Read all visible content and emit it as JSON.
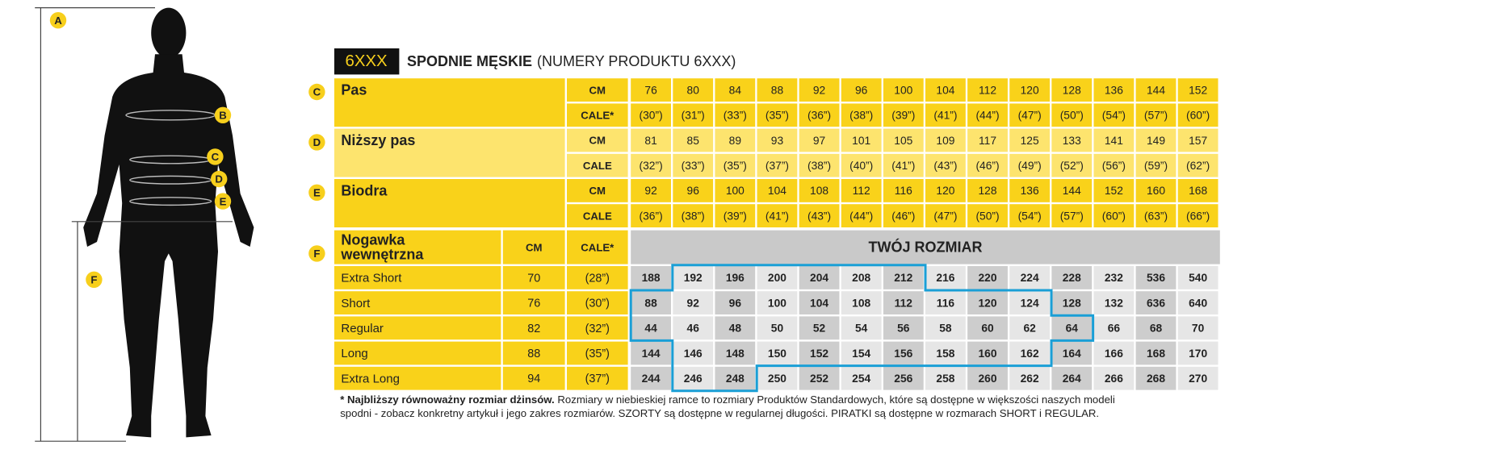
{
  "figure_letters": [
    "A",
    "B",
    "C",
    "D",
    "E",
    "F"
  ],
  "header": {
    "badge": "6XXX",
    "title": "SPODNIE MĘSKIE",
    "subtitle": "(NUMERY PRODUKTU 6XXX)"
  },
  "measurements": [
    {
      "letter": "C",
      "label": "Pas",
      "rows": [
        {
          "unit": "CM",
          "values": [
            76,
            80,
            84,
            88,
            92,
            96,
            100,
            104,
            112,
            120,
            128,
            136,
            144,
            152
          ]
        },
        {
          "unit": "CALE*",
          "values": [
            "(30”)",
            "(31”)",
            "(33”)",
            "(35”)",
            "(36”)",
            "(38”)",
            "(39”)",
            "(41”)",
            "(44”)",
            "(47”)",
            "(50”)",
            "(54”)",
            "(57”)",
            "(60”)"
          ]
        }
      ]
    },
    {
      "letter": "D",
      "label": "Niższy pas",
      "rows": [
        {
          "unit": "CM",
          "values": [
            81,
            85,
            89,
            93,
            97,
            101,
            105,
            109,
            117,
            125,
            133,
            141,
            149,
            157
          ]
        },
        {
          "unit": "CALE",
          "values": [
            "(32”)",
            "(33”)",
            "(35”)",
            "(37”)",
            "(38”)",
            "(40”)",
            "(41”)",
            "(43”)",
            "(46”)",
            "(49”)",
            "(52”)",
            "(56”)",
            "(59”)",
            "(62”)"
          ]
        }
      ]
    },
    {
      "letter": "E",
      "label": "Biodra",
      "rows": [
        {
          "unit": "CM",
          "values": [
            92,
            96,
            100,
            104,
            108,
            112,
            116,
            120,
            128,
            136,
            144,
            152,
            160,
            168
          ]
        },
        {
          "unit": "CALE",
          "values": [
            "(36”)",
            "(38”)",
            "(39”)",
            "(41”)",
            "(43”)",
            "(44”)",
            "(46”)",
            "(47”)",
            "(50”)",
            "(54”)",
            "(57”)",
            "(60”)",
            "(63”)",
            "(66”)"
          ]
        }
      ]
    }
  ],
  "inseam": {
    "letter": "F",
    "label": [
      "Nogawka",
      "wewnętrzna"
    ],
    "cm_header": "CM",
    "cale_header": "CALE*",
    "size_header": "TWÓJ ROZMIAR",
    "rows": [
      {
        "name": "Extra Short",
        "cm": 70,
        "cale": "(28”)",
        "sizes": [
          188,
          192,
          196,
          200,
          204,
          208,
          212,
          216,
          220,
          224,
          228,
          232,
          536,
          540
        ]
      },
      {
        "name": "Short",
        "cm": 76,
        "cale": "(30”)",
        "sizes": [
          88,
          92,
          96,
          100,
          104,
          108,
          112,
          116,
          120,
          124,
          128,
          132,
          636,
          640
        ]
      },
      {
        "name": "Regular",
        "cm": 82,
        "cale": "(32”)",
        "sizes": [
          44,
          46,
          48,
          50,
          52,
          54,
          56,
          58,
          60,
          62,
          64,
          66,
          68,
          70
        ]
      },
      {
        "name": "Long",
        "cm": 88,
        "cale": "(35”)",
        "sizes": [
          144,
          146,
          148,
          150,
          152,
          154,
          156,
          158,
          160,
          162,
          164,
          166,
          168,
          170
        ]
      },
      {
        "name": "Extra Long",
        "cm": 94,
        "cale": "(37”)",
        "sizes": [
          244,
          246,
          248,
          250,
          252,
          254,
          256,
          258,
          260,
          262,
          264,
          266,
          268,
          270
        ]
      }
    ]
  },
  "footnote": {
    "bold": "* Najbliższy równoważny rozmiar dżinsów.",
    "line1": " Rozmiary w niebieskiej ramce to rozmiary Produktów Standardowych, które są dostępne w większości naszych modeli",
    "line2": "spodni - zobacz konkretny artykuł i jego zakres rozmiarów. SZORTY są dostępne w regularnej długości. PIRATKI są dostępne w rozmarach SHORT i REGULAR."
  }
}
